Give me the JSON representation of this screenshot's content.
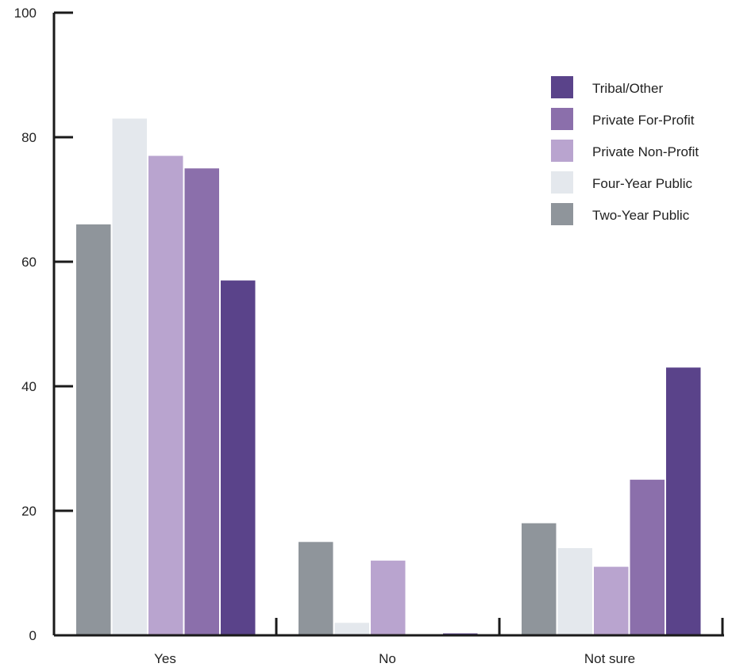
{
  "chart_data": {
    "type": "bar",
    "categories": [
      "Yes",
      "No",
      "Not sure"
    ],
    "series": [
      {
        "name": "Two-Year Public",
        "color": "#8f959b",
        "values": [
          66,
          15,
          18
        ]
      },
      {
        "name": "Four-Year Public",
        "color": "#e4e8ed",
        "values": [
          83,
          2,
          14
        ]
      },
      {
        "name": "Private Non-Profit",
        "color": "#b9a4cf",
        "values": [
          77,
          12,
          11
        ]
      },
      {
        "name": "Private For-Profit",
        "color": "#8b6fab",
        "values": [
          75,
          0,
          25
        ]
      },
      {
        "name": "Tribal/Other",
        "color": "#5a438a",
        "values": [
          57,
          0.3,
          43
        ]
      }
    ],
    "legend_order": [
      "Tribal/Other",
      "Private For-Profit",
      "Private Non-Profit",
      "Four-Year Public",
      "Two-Year Public"
    ],
    "ylim": [
      0,
      100
    ],
    "yticks": [
      0,
      20,
      40,
      60,
      80,
      100
    ],
    "legend_position": "top-right",
    "grid": false,
    "title": "",
    "xlabel": "",
    "ylabel": ""
  }
}
